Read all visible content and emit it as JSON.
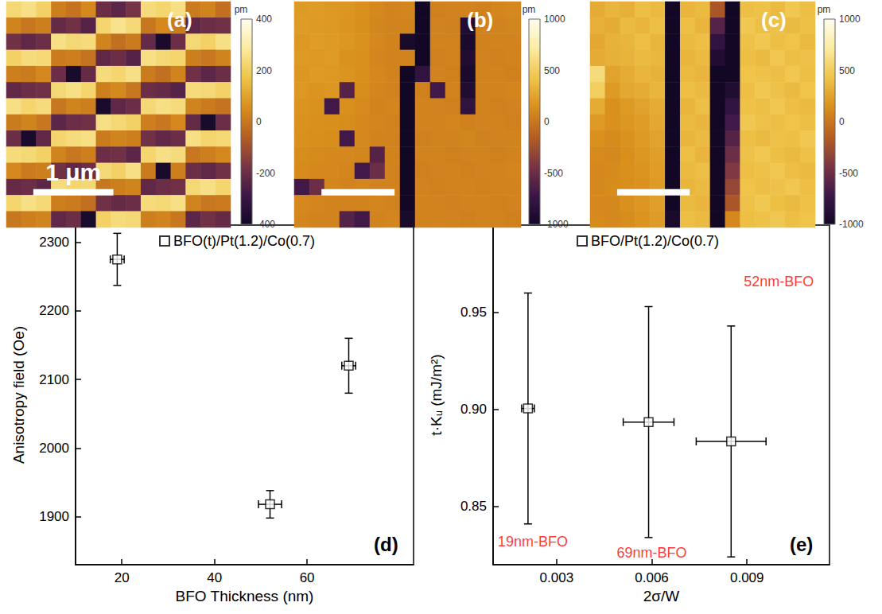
{
  "chart_data": [
    {
      "type": "heatmap",
      "title": "(a)",
      "extent_um": 2.8,
      "scale_bar": {
        "length_um": 1,
        "label": "1 μm"
      },
      "colorbar": {
        "range": [
          -400,
          400
        ],
        "ticks": [
          -400,
          -200,
          0,
          200,
          400
        ],
        "unit": "pm"
      },
      "cells": [
        [
          230,
          250,
          210,
          20,
          -10,
          40,
          -200,
          -230,
          -180,
          240,
          220,
          250,
          10,
          30,
          -20
        ],
        [
          30,
          0,
          20,
          -210,
          -190,
          -240,
          220,
          260,
          230,
          0,
          40,
          10,
          -220,
          -200,
          -190
        ],
        [
          -190,
          -220,
          -200,
          250,
          230,
          240,
          30,
          -20,
          10,
          -210,
          -380,
          -200,
          230,
          210,
          250
        ],
        [
          210,
          240,
          230,
          10,
          20,
          -10,
          -220,
          -200,
          -240,
          250,
          230,
          220,
          20,
          0,
          30
        ],
        [
          20,
          10,
          40,
          -200,
          -380,
          -210,
          240,
          220,
          250,
          10,
          -20,
          30,
          -190,
          -230,
          -200
        ],
        [
          -220,
          -200,
          -190,
          230,
          250,
          220,
          20,
          40,
          0,
          -200,
          -210,
          -240,
          240,
          230,
          210
        ],
        [
          250,
          220,
          240,
          0,
          30,
          20,
          -380,
          -220,
          -200,
          230,
          250,
          240,
          30,
          10,
          -10
        ],
        [
          10,
          30,
          0,
          -230,
          -200,
          -190,
          250,
          230,
          210,
          20,
          0,
          40,
          -210,
          -380,
          -200
        ],
        [
          -200,
          -380,
          -220,
          220,
          240,
          250,
          10,
          30,
          20,
          -190,
          -220,
          -200,
          250,
          220,
          230
        ],
        [
          240,
          230,
          210,
          30,
          0,
          20,
          -200,
          -190,
          -230,
          220,
          250,
          240,
          0,
          20,
          40
        ],
        [
          40,
          10,
          20,
          -190,
          -220,
          -200,
          230,
          210,
          250,
          10,
          -380,
          20,
          -200,
          -220,
          -190
        ],
        [
          -210,
          -200,
          -230,
          240,
          220,
          230,
          0,
          20,
          30,
          -220,
          -200,
          -190,
          230,
          250,
          220
        ],
        [
          220,
          250,
          230,
          20,
          10,
          -20,
          -190,
          -210,
          -200,
          240,
          230,
          250,
          30,
          0,
          10
        ],
        [
          0,
          20,
          30,
          -220,
          -200,
          -380,
          210,
          240,
          230,
          20,
          30,
          0,
          -230,
          -190,
          -210
        ]
      ]
    },
    {
      "type": "heatmap",
      "title": "(b)",
      "extent_um": 3.1,
      "scale_bar": {
        "length_um": 1
      },
      "colorbar": {
        "range": [
          -1000,
          1000
        ],
        "ticks": [
          -1000,
          -500,
          0,
          500,
          1000
        ],
        "unit": "pm"
      },
      "cells": [
        [
          200,
          210,
          190,
          180,
          150,
          100,
          80,
          90,
          -1000,
          60,
          70,
          80,
          60,
          90,
          100
        ],
        [
          210,
          200,
          190,
          170,
          140,
          90,
          70,
          80,
          -1000,
          70,
          60,
          -900,
          80,
          70,
          90
        ],
        [
          190,
          220,
          200,
          180,
          160,
          100,
          80,
          -950,
          -1000,
          80,
          70,
          -950,
          60,
          80,
          70
        ],
        [
          200,
          190,
          210,
          160,
          150,
          90,
          70,
          80,
          -1000,
          60,
          80,
          -900,
          70,
          60,
          80
        ],
        [
          180,
          200,
          190,
          170,
          140,
          100,
          80,
          -1000,
          -800,
          70,
          60,
          -950,
          80,
          70,
          60
        ],
        [
          190,
          170,
          180,
          -600,
          130,
          90,
          70,
          -1000,
          60,
          -700,
          80,
          -900,
          70,
          80,
          90
        ],
        [
          170,
          160,
          -700,
          150,
          120,
          80,
          90,
          -1000,
          80,
          70,
          60,
          -800,
          80,
          60,
          70
        ],
        [
          160,
          150,
          140,
          130,
          110,
          90,
          80,
          -1000,
          70,
          80,
          90,
          60,
          70,
          80,
          60
        ],
        [
          150,
          140,
          130,
          -700,
          100,
          80,
          70,
          -1000,
          60,
          70,
          80,
          90,
          60,
          70,
          80
        ],
        [
          130,
          120,
          110,
          100,
          90,
          -600,
          80,
          -1000,
          70,
          80,
          60,
          70,
          80,
          60,
          70
        ],
        [
          120,
          110,
          100,
          90,
          -700,
          -500,
          70,
          -1000,
          60,
          70,
          80,
          60,
          70,
          80,
          90
        ],
        [
          -700,
          -500,
          90,
          80,
          90,
          70,
          80,
          -1000,
          70,
          60,
          70,
          80,
          60,
          70,
          80
        ],
        [
          100,
          90,
          80,
          70,
          80,
          90,
          70,
          -1000,
          80,
          70,
          60,
          70,
          80,
          60,
          70
        ],
        [
          90,
          80,
          70,
          -600,
          -700,
          80,
          90,
          -950,
          70,
          80,
          70,
          60,
          70,
          80,
          60
        ]
      ]
    },
    {
      "type": "heatmap",
      "title": "(c)",
      "extent_um": 3.1,
      "scale_bar": {
        "length_um": 1
      },
      "colorbar": {
        "range": [
          -1000,
          1000
        ],
        "ticks": [
          -1000,
          -500,
          0,
          500,
          1000
        ],
        "unit": "pm"
      },
      "cells": [
        [
          300,
          350,
          320,
          400,
          380,
          -1000,
          350,
          380,
          -200,
          -1000,
          400,
          420,
          380,
          450,
          400
        ],
        [
          320,
          300,
          380,
          350,
          400,
          -1000,
          400,
          350,
          -600,
          -1000,
          450,
          400,
          420,
          380,
          410
        ],
        [
          280,
          330,
          350,
          400,
          350,
          -1000,
          380,
          400,
          -800,
          -1000,
          420,
          450,
          400,
          430,
          380
        ],
        [
          300,
          320,
          340,
          380,
          360,
          -1000,
          350,
          380,
          -900,
          -1000,
          400,
          380,
          450,
          400,
          420
        ],
        [
          600,
          250,
          300,
          350,
          330,
          -1000,
          380,
          350,
          -1000,
          -1000,
          430,
          420,
          400,
          450,
          400
        ],
        [
          500,
          200,
          280,
          300,
          350,
          -1000,
          400,
          380,
          -1000,
          -900,
          400,
          450,
          420,
          380,
          430
        ],
        [
          300,
          150,
          200,
          250,
          300,
          -1000,
          350,
          400,
          -1000,
          -800,
          420,
          400,
          450,
          400,
          380
        ],
        [
          200,
          150,
          180,
          220,
          280,
          -1000,
          380,
          350,
          -1000,
          -700,
          450,
          420,
          400,
          430,
          400
        ],
        [
          150,
          120,
          160,
          200,
          250,
          -1000,
          350,
          380,
          -1000,
          -600,
          400,
          380,
          420,
          400,
          450
        ],
        [
          120,
          100,
          140,
          180,
          230,
          -1000,
          400,
          350,
          -1000,
          -500,
          420,
          450,
          400,
          380,
          420
        ],
        [
          100,
          120,
          150,
          170,
          220,
          -1000,
          380,
          400,
          -1000,
          -400,
          400,
          420,
          450,
          400,
          380
        ],
        [
          110,
          130,
          140,
          160,
          200,
          -1000,
          350,
          380,
          -1000,
          -300,
          430,
          400,
          420,
          450,
          400
        ],
        [
          100,
          110,
          150,
          180,
          230,
          -1000,
          380,
          350,
          -1000,
          -200,
          420,
          450,
          400,
          380,
          420
        ],
        [
          120,
          100,
          130,
          170,
          210,
          -950,
          400,
          380,
          -1000,
          100,
          400,
          420,
          450,
          400,
          430
        ]
      ]
    },
    {
      "type": "scatter",
      "title": "(d)",
      "xlabel": "BFO Thickness (nm)",
      "ylabel": "Anisotropy field (Oe)",
      "xlim": [
        10,
        83
      ],
      "ylim": [
        1830,
        2325
      ],
      "xticks": [
        20,
        40,
        60
      ],
      "yticks": [
        1900,
        2000,
        2100,
        2200,
        2300
      ],
      "grid": false,
      "legend": "upper left",
      "series": [
        {
          "name": "BFO(t)/Pt(1.2)/Co(0.7)",
          "color": "#000000",
          "marker": "square_open",
          "x": [
            19,
            52,
            69
          ],
          "values": [
            2275,
            1918,
            2120
          ],
          "x_err": [
            1.5,
            2.5,
            1.5
          ],
          "y_err": [
            38,
            20,
            40
          ]
        }
      ]
    },
    {
      "type": "scatter",
      "title": "(e)",
      "xlabel": "2σ/W",
      "ylabel": "t·Kᵤ (mJ/m²)",
      "xlim": [
        0.001,
        0.0116
      ],
      "ylim": [
        0.82,
        0.995
      ],
      "xticks": [
        0.003,
        0.006,
        0.009
      ],
      "yticks": [
        0.85,
        {
          "value": 0.9,
          "label": "0.90"
        },
        0.95
      ],
      "grid": false,
      "legend": "upper left",
      "series": [
        {
          "name": "BFO/Pt(1.2)/Co(0.7)",
          "color": "#000000",
          "marker": "square_open",
          "x": [
            0.0021,
            0.0059,
            0.0085
          ],
          "values": [
            0.9005,
            0.8935,
            0.8835
          ],
          "x_err": [
            0.0002,
            0.0008,
            0.0011
          ],
          "y_err": [
            0.0595,
            0.0595,
            0.0595
          ]
        }
      ],
      "annotations": [
        {
          "text": "19nm-BFO",
          "x": 0.00225,
          "y": 0.832,
          "color": "#ff0000"
        },
        {
          "text": "69nm-BFO",
          "x": 0.006,
          "y": 0.826,
          "color": "#ff0000"
        },
        {
          "text": "52nm-BFO",
          "x": 0.01,
          "y": 0.966,
          "color": "#ff0000"
        }
      ]
    }
  ]
}
